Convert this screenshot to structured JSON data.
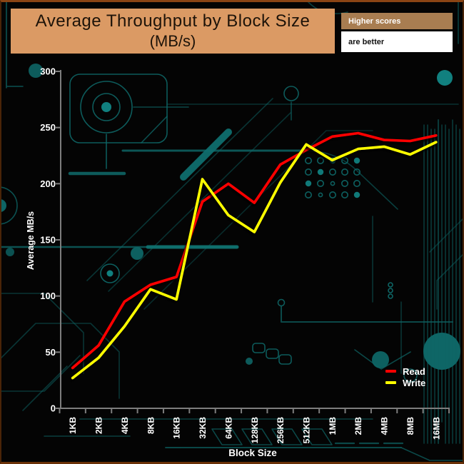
{
  "title": {
    "line1": "Average Throughput by Block Size",
    "line2": "(MB/s)"
  },
  "note": {
    "header": "Higher scores",
    "body": "are better"
  },
  "chart_data": {
    "type": "line",
    "title": "Average Throughput by Block Size (MB/s)",
    "categories": [
      "1KB",
      "2KB",
      "4KB",
      "8KB",
      "16KB",
      "32KB",
      "64KB",
      "128KB",
      "256KB",
      "512KB",
      "1MB",
      "2MB",
      "4MB",
      "8MB",
      "16MB"
    ],
    "series": [
      {
        "name": "Read",
        "color": "#ff0000",
        "values": [
          36,
          56,
          95,
          110,
          117,
          184,
          200,
          183,
          217,
          230,
          242,
          245,
          239,
          238,
          243
        ]
      },
      {
        "name": "Write",
        "color": "#ffff00",
        "values": [
          27,
          45,
          73,
          106,
          97,
          204,
          172,
          157,
          201,
          235,
          221,
          231,
          233,
          226,
          237
        ]
      }
    ],
    "xlabel": "Block Size",
    "ylabel": "Average MB/s",
    "ylim": [
      0,
      300
    ],
    "yticks": [
      0,
      50,
      100,
      150,
      200,
      250,
      300
    ],
    "grid": false,
    "legend_position": "lower-right"
  },
  "colors": {
    "banner_bg": "#db9a64",
    "banner_text": "#1d1309",
    "note_header_bg": "#a87d51",
    "note_header_text": "#ffffff",
    "note_body_bg": "#ffffff",
    "read_line": "#ff0000",
    "write_line": "#ffff00",
    "axis": "#7d7d7d",
    "tick_text": "#ffffff",
    "circuit_trace": "#0e6565",
    "background": "#040404"
  }
}
